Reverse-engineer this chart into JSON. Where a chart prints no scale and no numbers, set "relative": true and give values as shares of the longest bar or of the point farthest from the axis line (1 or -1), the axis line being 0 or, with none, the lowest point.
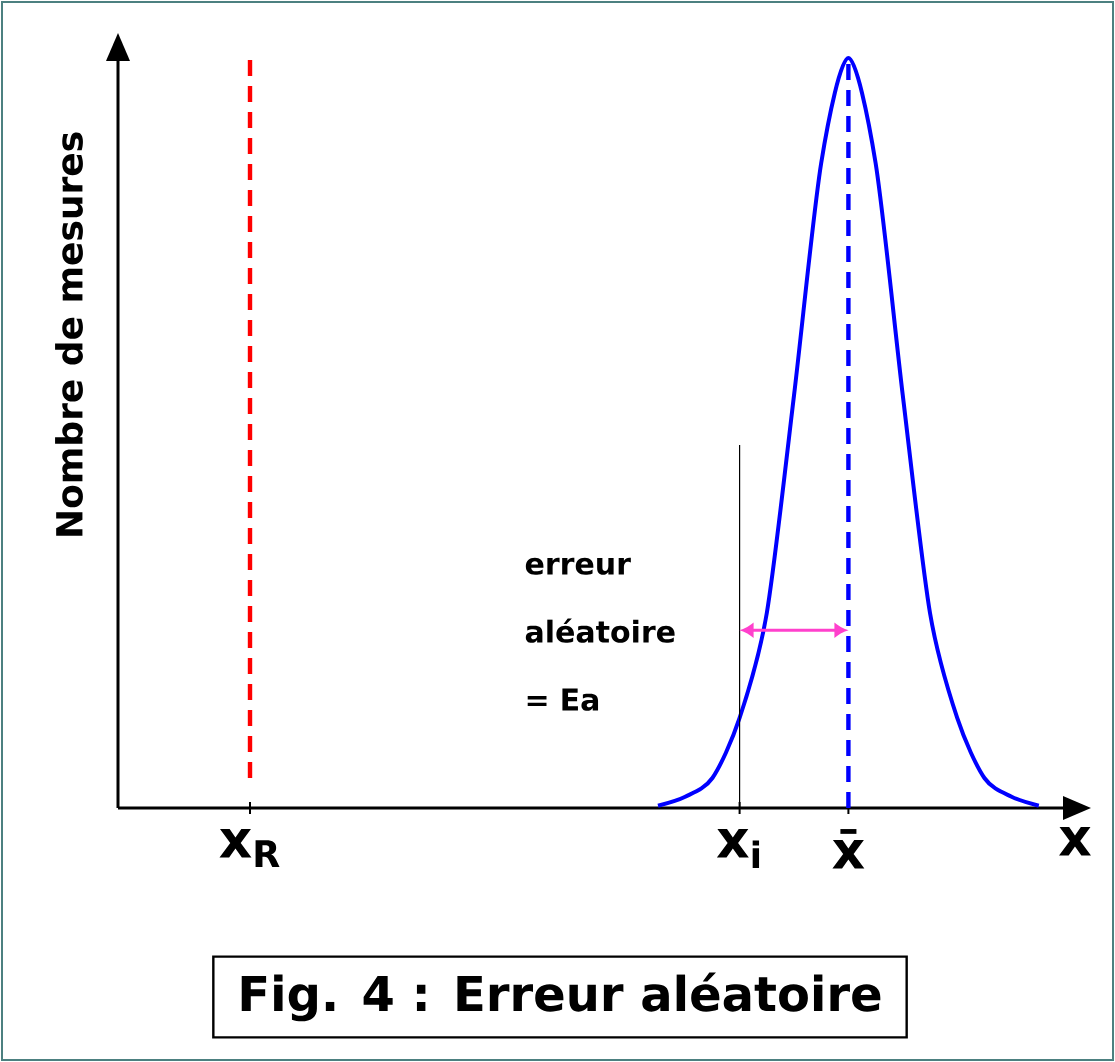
{
  "chart_data": {
    "type": "line",
    "title": "Fig. 4 : Erreur aléatoire",
    "xlabel": "x",
    "ylabel": "Nombre de mesures",
    "relative": true,
    "line_style": "solid",
    "categories": [
      null,
      null,
      null,
      null,
      "x$_{R}$",
      null,
      null,
      null,
      null,
      null,
      null,
      null,
      null,
      null,
      null,
      null,
      null,
      null,
      null,
      null,
      null,
      null,
      "x$_{i}$",
      null,
      null,
      null,
      "x̄",
      null,
      null,
      null,
      null,
      null,
      null,
      null,
      null
    ],
    "series": [
      {
        "color": "#0000ff",
        "values": [
          null,
          null,
          null,
          null,
          null,
          null,
          null,
          null,
          null,
          null,
          null,
          null,
          null,
          null,
          null,
          null,
          null,
          null,
          null,
          0.003,
          0.015,
          0.04,
          0.12,
          0.26,
          0.55,
          0.86,
          1,
          0.86,
          0.55,
          0.26,
          0.12,
          0.04,
          0.015,
          0.003,
          null
        ]
      }
    ],
    "ref_lines": [
      {
        "axis": "x",
        "value": "x$_{R}$",
        "color": "#ff0000",
        "line_style": "dashed"
      },
      {
        "axis": "x",
        "value": "x$_{i}$",
        "color": "#000000",
        "line_style": "solid"
      },
      {
        "axis": "x",
        "value": "x̄",
        "color": "#0000ff",
        "line_style": "dashed"
      }
    ],
    "annotations": [
      "erreur aléatoire = Ea"
    ]
  }
}
